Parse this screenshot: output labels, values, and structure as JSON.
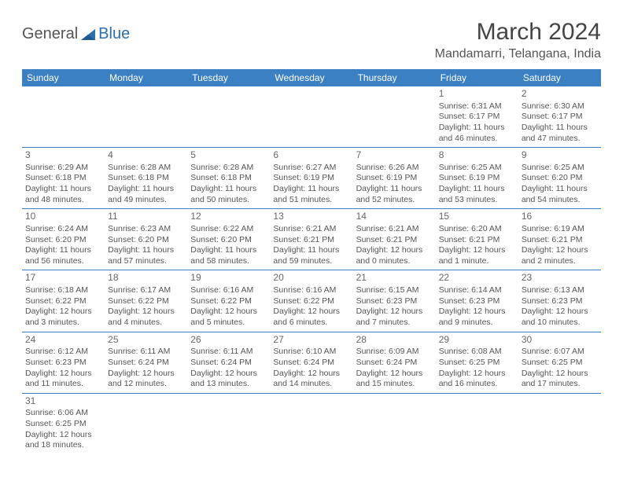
{
  "logo": {
    "text1": "General",
    "text2": "Blue"
  },
  "title": "March 2024",
  "location": "Mandamarri, Telangana, India",
  "colors": {
    "header_bg": "#3a80c3",
    "header_text": "#ffffff",
    "border": "#3a80c3",
    "body_text": "#555555",
    "logo_gray": "#555555",
    "logo_blue": "#2b6fb0",
    "background": "#ffffff"
  },
  "day_names": [
    "Sunday",
    "Monday",
    "Tuesday",
    "Wednesday",
    "Thursday",
    "Friday",
    "Saturday"
  ],
  "weeks": [
    [
      null,
      null,
      null,
      null,
      null,
      {
        "n": "1",
        "sunrise": "Sunrise: 6:31 AM",
        "sunset": "Sunset: 6:17 PM",
        "daylight": "Daylight: 11 hours and 46 minutes."
      },
      {
        "n": "2",
        "sunrise": "Sunrise: 6:30 AM",
        "sunset": "Sunset: 6:17 PM",
        "daylight": "Daylight: 11 hours and 47 minutes."
      }
    ],
    [
      {
        "n": "3",
        "sunrise": "Sunrise: 6:29 AM",
        "sunset": "Sunset: 6:18 PM",
        "daylight": "Daylight: 11 hours and 48 minutes."
      },
      {
        "n": "4",
        "sunrise": "Sunrise: 6:28 AM",
        "sunset": "Sunset: 6:18 PM",
        "daylight": "Daylight: 11 hours and 49 minutes."
      },
      {
        "n": "5",
        "sunrise": "Sunrise: 6:28 AM",
        "sunset": "Sunset: 6:18 PM",
        "daylight": "Daylight: 11 hours and 50 minutes."
      },
      {
        "n": "6",
        "sunrise": "Sunrise: 6:27 AM",
        "sunset": "Sunset: 6:19 PM",
        "daylight": "Daylight: 11 hours and 51 minutes."
      },
      {
        "n": "7",
        "sunrise": "Sunrise: 6:26 AM",
        "sunset": "Sunset: 6:19 PM",
        "daylight": "Daylight: 11 hours and 52 minutes."
      },
      {
        "n": "8",
        "sunrise": "Sunrise: 6:25 AM",
        "sunset": "Sunset: 6:19 PM",
        "daylight": "Daylight: 11 hours and 53 minutes."
      },
      {
        "n": "9",
        "sunrise": "Sunrise: 6:25 AM",
        "sunset": "Sunset: 6:20 PM",
        "daylight": "Daylight: 11 hours and 54 minutes."
      }
    ],
    [
      {
        "n": "10",
        "sunrise": "Sunrise: 6:24 AM",
        "sunset": "Sunset: 6:20 PM",
        "daylight": "Daylight: 11 hours and 56 minutes."
      },
      {
        "n": "11",
        "sunrise": "Sunrise: 6:23 AM",
        "sunset": "Sunset: 6:20 PM",
        "daylight": "Daylight: 11 hours and 57 minutes."
      },
      {
        "n": "12",
        "sunrise": "Sunrise: 6:22 AM",
        "sunset": "Sunset: 6:20 PM",
        "daylight": "Daylight: 11 hours and 58 minutes."
      },
      {
        "n": "13",
        "sunrise": "Sunrise: 6:21 AM",
        "sunset": "Sunset: 6:21 PM",
        "daylight": "Daylight: 11 hours and 59 minutes."
      },
      {
        "n": "14",
        "sunrise": "Sunrise: 6:21 AM",
        "sunset": "Sunset: 6:21 PM",
        "daylight": "Daylight: 12 hours and 0 minutes."
      },
      {
        "n": "15",
        "sunrise": "Sunrise: 6:20 AM",
        "sunset": "Sunset: 6:21 PM",
        "daylight": "Daylight: 12 hours and 1 minute."
      },
      {
        "n": "16",
        "sunrise": "Sunrise: 6:19 AM",
        "sunset": "Sunset: 6:21 PM",
        "daylight": "Daylight: 12 hours and 2 minutes."
      }
    ],
    [
      {
        "n": "17",
        "sunrise": "Sunrise: 6:18 AM",
        "sunset": "Sunset: 6:22 PM",
        "daylight": "Daylight: 12 hours and 3 minutes."
      },
      {
        "n": "18",
        "sunrise": "Sunrise: 6:17 AM",
        "sunset": "Sunset: 6:22 PM",
        "daylight": "Daylight: 12 hours and 4 minutes."
      },
      {
        "n": "19",
        "sunrise": "Sunrise: 6:16 AM",
        "sunset": "Sunset: 6:22 PM",
        "daylight": "Daylight: 12 hours and 5 minutes."
      },
      {
        "n": "20",
        "sunrise": "Sunrise: 6:16 AM",
        "sunset": "Sunset: 6:22 PM",
        "daylight": "Daylight: 12 hours and 6 minutes."
      },
      {
        "n": "21",
        "sunrise": "Sunrise: 6:15 AM",
        "sunset": "Sunset: 6:23 PM",
        "daylight": "Daylight: 12 hours and 7 minutes."
      },
      {
        "n": "22",
        "sunrise": "Sunrise: 6:14 AM",
        "sunset": "Sunset: 6:23 PM",
        "daylight": "Daylight: 12 hours and 9 minutes."
      },
      {
        "n": "23",
        "sunrise": "Sunrise: 6:13 AM",
        "sunset": "Sunset: 6:23 PM",
        "daylight": "Daylight: 12 hours and 10 minutes."
      }
    ],
    [
      {
        "n": "24",
        "sunrise": "Sunrise: 6:12 AM",
        "sunset": "Sunset: 6:23 PM",
        "daylight": "Daylight: 12 hours and 11 minutes."
      },
      {
        "n": "25",
        "sunrise": "Sunrise: 6:11 AM",
        "sunset": "Sunset: 6:24 PM",
        "daylight": "Daylight: 12 hours and 12 minutes."
      },
      {
        "n": "26",
        "sunrise": "Sunrise: 6:11 AM",
        "sunset": "Sunset: 6:24 PM",
        "daylight": "Daylight: 12 hours and 13 minutes."
      },
      {
        "n": "27",
        "sunrise": "Sunrise: 6:10 AM",
        "sunset": "Sunset: 6:24 PM",
        "daylight": "Daylight: 12 hours and 14 minutes."
      },
      {
        "n": "28",
        "sunrise": "Sunrise: 6:09 AM",
        "sunset": "Sunset: 6:24 PM",
        "daylight": "Daylight: 12 hours and 15 minutes."
      },
      {
        "n": "29",
        "sunrise": "Sunrise: 6:08 AM",
        "sunset": "Sunset: 6:25 PM",
        "daylight": "Daylight: 12 hours and 16 minutes."
      },
      {
        "n": "30",
        "sunrise": "Sunrise: 6:07 AM",
        "sunset": "Sunset: 6:25 PM",
        "daylight": "Daylight: 12 hours and 17 minutes."
      }
    ],
    [
      {
        "n": "31",
        "sunrise": "Sunrise: 6:06 AM",
        "sunset": "Sunset: 6:25 PM",
        "daylight": "Daylight: 12 hours and 18 minutes."
      },
      null,
      null,
      null,
      null,
      null,
      null
    ]
  ]
}
